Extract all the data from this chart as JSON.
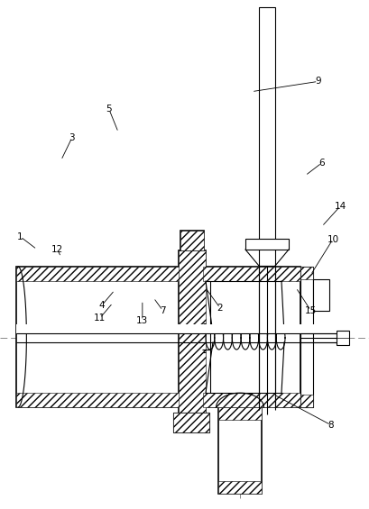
{
  "bg_color": "#ffffff",
  "line_color": "#000000",
  "lw": 0.8,
  "lw2": 1.2,
  "labels": {
    "1": [
      0.055,
      0.535,
      0.1,
      0.51
    ],
    "2": [
      0.595,
      0.395,
      0.555,
      0.435
    ],
    "3": [
      0.195,
      0.73,
      0.165,
      0.685
    ],
    "4": [
      0.275,
      0.4,
      0.31,
      0.43
    ],
    "5": [
      0.295,
      0.785,
      0.32,
      0.74
    ],
    "6": [
      0.87,
      0.68,
      0.825,
      0.655
    ],
    "7": [
      0.44,
      0.39,
      0.415,
      0.415
    ],
    "8": [
      0.895,
      0.165,
      0.74,
      0.225
    ],
    "9": [
      0.86,
      0.84,
      0.68,
      0.82
    ],
    "10": [
      0.9,
      0.53,
      0.84,
      0.46
    ],
    "11": [
      0.27,
      0.375,
      0.305,
      0.405
    ],
    "12": [
      0.155,
      0.51,
      0.165,
      0.495
    ],
    "13": [
      0.385,
      0.37,
      0.385,
      0.41
    ],
    "14": [
      0.92,
      0.595,
      0.87,
      0.555
    ],
    "15": [
      0.84,
      0.39,
      0.8,
      0.435
    ]
  }
}
